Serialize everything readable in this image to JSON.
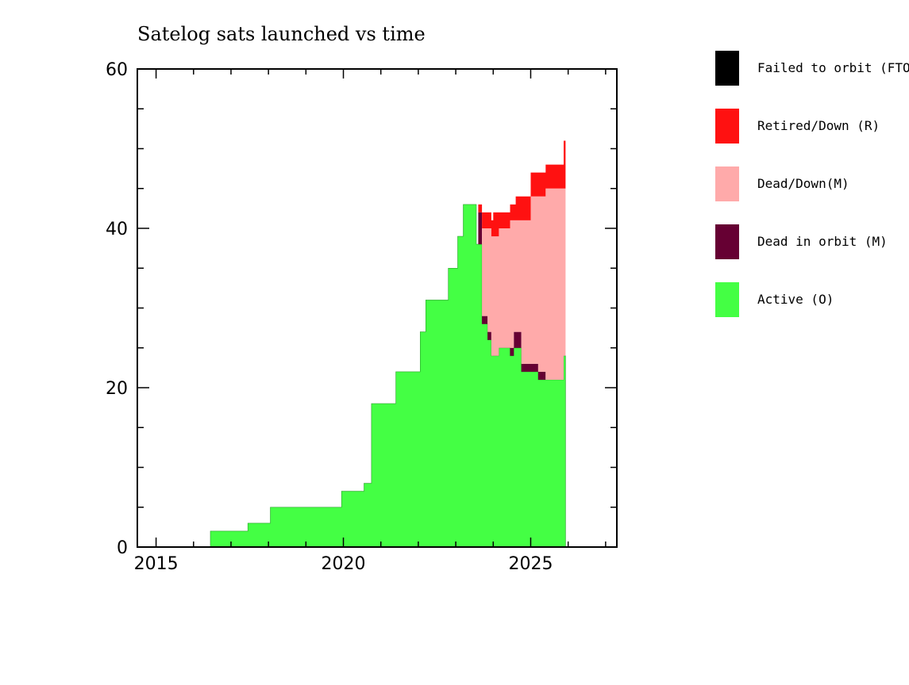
{
  "chart_data": {
    "type": "area",
    "title": "Satelog sats launched vs time",
    "xlabel": "",
    "ylabel": "",
    "xlim": [
      2014.5,
      2027.3
    ],
    "ylim": [
      0,
      60
    ],
    "x_ticks": [
      2015,
      2020,
      2025
    ],
    "y_ticks": [
      0,
      20,
      40,
      60
    ],
    "stacked": true,
    "grid": false,
    "legend_position": "right",
    "series": [
      {
        "name": "Active (O)",
        "color": "#44ff44",
        "points": [
          [
            2016.45,
            2
          ],
          [
            2017.45,
            3
          ],
          [
            2018.05,
            5
          ],
          [
            2019.95,
            7
          ],
          [
            2020.55,
            8
          ],
          [
            2020.75,
            18
          ],
          [
            2021.4,
            22
          ],
          [
            2022.05,
            27
          ],
          [
            2022.2,
            31
          ],
          [
            2022.8,
            35
          ],
          [
            2023.05,
            39
          ],
          [
            2023.2,
            43
          ],
          [
            2023.55,
            38
          ],
          [
            2023.7,
            28
          ],
          [
            2023.85,
            26
          ],
          [
            2023.95,
            24
          ],
          [
            2024.15,
            25
          ],
          [
            2024.45,
            24
          ],
          [
            2024.55,
            25
          ],
          [
            2024.75,
            22
          ],
          [
            2025.0,
            22
          ],
          [
            2025.2,
            21
          ],
          [
            2025.88,
            24
          ],
          [
            2025.93,
            24
          ]
        ]
      },
      {
        "name": "Dead in orbit (M)",
        "color": "#660033",
        "points": [
          [
            2016.45,
            0
          ],
          [
            2023.55,
            0
          ],
          [
            2023.6,
            4
          ],
          [
            2023.7,
            1
          ],
          [
            2023.85,
            1
          ],
          [
            2023.95,
            0
          ],
          [
            2024.45,
            1
          ],
          [
            2024.55,
            2
          ],
          [
            2024.75,
            1
          ],
          [
            2025.0,
            1
          ],
          [
            2025.2,
            1
          ],
          [
            2025.4,
            0
          ],
          [
            2025.93,
            0
          ]
        ]
      },
      {
        "name": "Dead/Down(M)",
        "color": "#ffaaaa",
        "points": [
          [
            2016.45,
            0
          ],
          [
            2023.55,
            0
          ],
          [
            2023.6,
            0
          ],
          [
            2023.7,
            11
          ],
          [
            2023.85,
            13
          ],
          [
            2023.95,
            15
          ],
          [
            2024.45,
            16
          ],
          [
            2024.55,
            14
          ],
          [
            2024.75,
            18
          ],
          [
            2025.0,
            21
          ],
          [
            2025.2,
            22
          ],
          [
            2025.4,
            24
          ],
          [
            2025.88,
            21
          ],
          [
            2025.93,
            21
          ]
        ]
      },
      {
        "name": "Retired/Down (R)",
        "color": "#ff1111",
        "points": [
          [
            2016.45,
            0
          ],
          [
            2023.55,
            0
          ],
          [
            2023.6,
            1
          ],
          [
            2023.7,
            2
          ],
          [
            2024.0,
            3
          ],
          [
            2024.15,
            2
          ],
          [
            2024.6,
            3
          ],
          [
            2025.0,
            3
          ],
          [
            2025.4,
            3
          ],
          [
            2025.88,
            6
          ],
          [
            2025.93,
            6
          ]
        ]
      },
      {
        "name": "Failed to orbit (FTO)",
        "color": "#000000",
        "points": [
          [
            2016.45,
            0
          ],
          [
            2025.93,
            0
          ]
        ]
      }
    ],
    "legend_order": [
      "Failed to orbit (FTO)",
      "Retired/Down (R)",
      "Dead/Down(M)",
      "Dead in orbit (M)",
      "Active (O)"
    ]
  }
}
